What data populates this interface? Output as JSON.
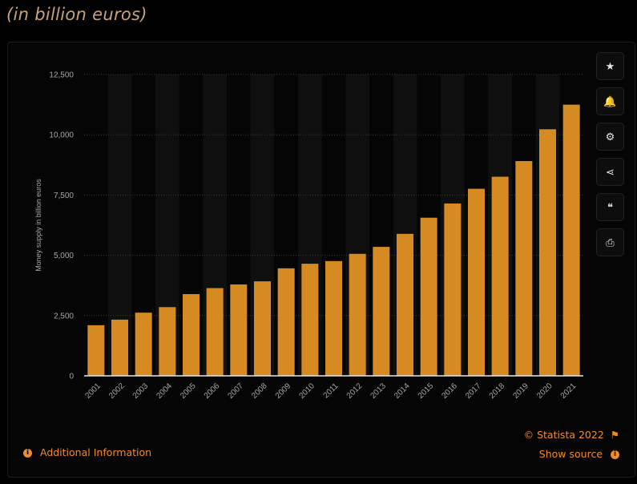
{
  "header": {
    "subtitle": "(in billion euros)"
  },
  "toolbar": {
    "buttons": [
      {
        "name": "favorite-button",
        "icon": "star-icon",
        "glyph": "★"
      },
      {
        "name": "notification-button",
        "icon": "bell-icon",
        "glyph": "🔔"
      },
      {
        "name": "settings-button",
        "icon": "gear-icon",
        "glyph": "⚙"
      },
      {
        "name": "share-button",
        "icon": "share-icon",
        "glyph": "⋖"
      },
      {
        "name": "cite-button",
        "icon": "quote-icon",
        "glyph": "❝"
      },
      {
        "name": "print-button",
        "icon": "print-icon",
        "glyph": "⎙"
      }
    ]
  },
  "footer": {
    "copyright": "© Statista 2022",
    "show_source": "Show source",
    "additional_info": "Additional Information"
  },
  "colors": {
    "bar": "#d68a22",
    "accent": "#f28c28",
    "background": "#000000"
  },
  "chart_data": {
    "type": "bar",
    "title": "",
    "xlabel": "",
    "ylabel": "Money supply in billion euros",
    "ylim": [
      0,
      12500
    ],
    "yticks": [
      "0",
      "2,500",
      "5,000",
      "7,500",
      "10,000",
      "12,500"
    ],
    "ytick_values": [
      0,
      2500,
      5000,
      7500,
      10000,
      12500
    ],
    "grid": true,
    "categories": [
      "2001",
      "2002",
      "2003",
      "2004",
      "2005",
      "2006",
      "2007",
      "2008",
      "2009",
      "2010",
      "2011",
      "2012",
      "2013",
      "2014",
      "2015",
      "2016",
      "2017",
      "2018",
      "2019",
      "2020",
      "2021"
    ],
    "values": [
      2100,
      2330,
      2620,
      2850,
      3390,
      3640,
      3790,
      3920,
      4460,
      4650,
      4760,
      5060,
      5350,
      5890,
      6560,
      7150,
      7760,
      8260,
      8910,
      10230,
      11250
    ]
  }
}
